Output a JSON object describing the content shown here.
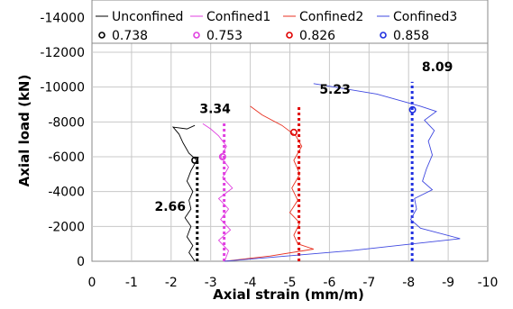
{
  "chart_data": {
    "type": "line",
    "xlabel": "Axial strain (mm/m)",
    "ylabel": "Axial load (kN)",
    "xlim": [
      0,
      -10
    ],
    "ylim": [
      0,
      -15000
    ],
    "x_ticks": [
      0,
      -1,
      -2,
      -3,
      -4,
      -5,
      -6,
      -7,
      -8,
      -9,
      -10
    ],
    "y_ticks": [
      0,
      -2000,
      -4000,
      -6000,
      -8000,
      -10000,
      -12000,
      -14000
    ],
    "grid": true,
    "legend_position": "top",
    "series": [
      {
        "name": "Unconfined",
        "color": "#000000",
        "points": [
          [
            -2.6,
            0
          ],
          [
            -2.45,
            -500
          ],
          [
            -2.55,
            -900
          ],
          [
            -2.4,
            -1400
          ],
          [
            -2.5,
            -2000
          ],
          [
            -2.35,
            -2500
          ],
          [
            -2.5,
            -3000
          ],
          [
            -2.45,
            -3500
          ],
          [
            -2.55,
            -4000
          ],
          [
            -2.4,
            -4600
          ],
          [
            -2.5,
            -5200
          ],
          [
            -2.65,
            -5800
          ],
          [
            -2.45,
            -6200
          ],
          [
            -2.3,
            -6800
          ],
          [
            -2.2,
            -7300
          ],
          [
            -2.05,
            -7700
          ],
          [
            -2.4,
            -7600
          ],
          [
            -2.6,
            -7800
          ]
        ]
      },
      {
        "name": "Confined1",
        "color": "#e040e0",
        "points": [
          [
            -3.35,
            0
          ],
          [
            -3.45,
            -600
          ],
          [
            -3.2,
            -1200
          ],
          [
            -3.5,
            -1800
          ],
          [
            -3.25,
            -2400
          ],
          [
            -3.45,
            -3000
          ],
          [
            -3.2,
            -3600
          ],
          [
            -3.55,
            -4200
          ],
          [
            -3.3,
            -4800
          ],
          [
            -3.45,
            -5400
          ],
          [
            -3.25,
            -6000
          ],
          [
            -3.4,
            -6600
          ],
          [
            -3.2,
            -7200
          ],
          [
            -3.0,
            -7600
          ],
          [
            -2.8,
            -7900
          ]
        ]
      },
      {
        "name": "Confined2",
        "color": "#e83020",
        "points": [
          [
            -3.35,
            0
          ],
          [
            -4.5,
            -300
          ],
          [
            -5.6,
            -700
          ],
          [
            -5.2,
            -1000
          ],
          [
            -5.1,
            -1500
          ],
          [
            -5.25,
            -2200
          ],
          [
            -5.0,
            -2800
          ],
          [
            -5.2,
            -3500
          ],
          [
            -5.05,
            -4200
          ],
          [
            -5.25,
            -5000
          ],
          [
            -5.1,
            -5800
          ],
          [
            -5.3,
            -6600
          ],
          [
            -5.15,
            -7200
          ],
          [
            -4.8,
            -7800
          ],
          [
            -4.3,
            -8400
          ],
          [
            -4.0,
            -8900
          ]
        ]
      },
      {
        "name": "Confined3",
        "color": "#3f48e0",
        "points": [
          [
            -3.35,
            0
          ],
          [
            -6.5,
            -600
          ],
          [
            -9.3,
            -1300
          ],
          [
            -8.3,
            -1900
          ],
          [
            -8.05,
            -2400
          ],
          [
            -8.2,
            -3000
          ],
          [
            -8.15,
            -3600
          ],
          [
            -8.6,
            -4100
          ],
          [
            -8.35,
            -4600
          ],
          [
            -8.45,
            -5300
          ],
          [
            -8.6,
            -6100
          ],
          [
            -8.5,
            -6900
          ],
          [
            -8.65,
            -7500
          ],
          [
            -8.4,
            -8100
          ],
          [
            -8.7,
            -8600
          ],
          [
            -8.3,
            -8900
          ],
          [
            -7.2,
            -9600
          ],
          [
            -5.6,
            -10200
          ]
        ]
      }
    ],
    "markers": [
      {
        "name": "0.738",
        "color": "#000000",
        "x": -2.6,
        "y": -5800
      },
      {
        "name": "0.753",
        "color": "#e040e0",
        "x": -3.3,
        "y": -6000
      },
      {
        "name": "0.826",
        "color": "#e00000",
        "x": -5.1,
        "y": -7400
      },
      {
        "name": "0.858",
        "color": "#2030e0",
        "x": -8.1,
        "y": -8700
      }
    ],
    "vertical_lines": [
      {
        "x": -2.66,
        "y_top": -6000,
        "color": "#000000",
        "label": "2.66"
      },
      {
        "x": -3.34,
        "y_top": -8000,
        "color": "#e040e0",
        "label": "3.34"
      },
      {
        "x": -5.23,
        "y_top": -9000,
        "color": "#e00000",
        "label": "5.23"
      },
      {
        "x": -8.09,
        "y_top": -10300,
        "color": "#2030e0",
        "label": "8.09"
      }
    ]
  }
}
